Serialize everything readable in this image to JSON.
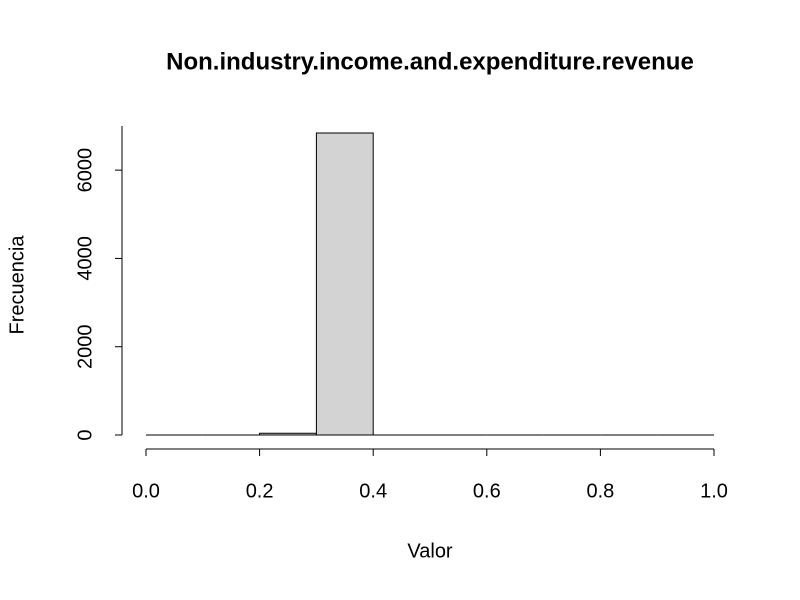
{
  "chart_data": {
    "type": "histogram",
    "title": "Non.industry.income.and.expenditure.revenue",
    "xlabel": "Valor",
    "ylabel": "Frecuencia",
    "bins": [
      0,
      0.1,
      0.2,
      0.3,
      0.4,
      0.5,
      0.6,
      0.7,
      0.8,
      0.9,
      1.0
    ],
    "counts": [
      0,
      0,
      40,
      6841,
      0,
      0,
      0,
      0,
      0,
      0
    ],
    "color": "#d3d3d3",
    "xlim": [
      0,
      1
    ],
    "ylim": [
      0,
      7000
    ],
    "xticks": [
      {
        "value": 0,
        "label": "0.0"
      },
      {
        "value": 0.2,
        "label": "0.2"
      },
      {
        "value": 0.4,
        "label": "0.4"
      },
      {
        "value": 0.6,
        "label": "0.6"
      },
      {
        "value": 0.8,
        "label": "0.8"
      },
      {
        "value": 1.0,
        "label": "1.0"
      }
    ],
    "yticks": [
      0,
      2000,
      4000,
      6000
    ]
  }
}
